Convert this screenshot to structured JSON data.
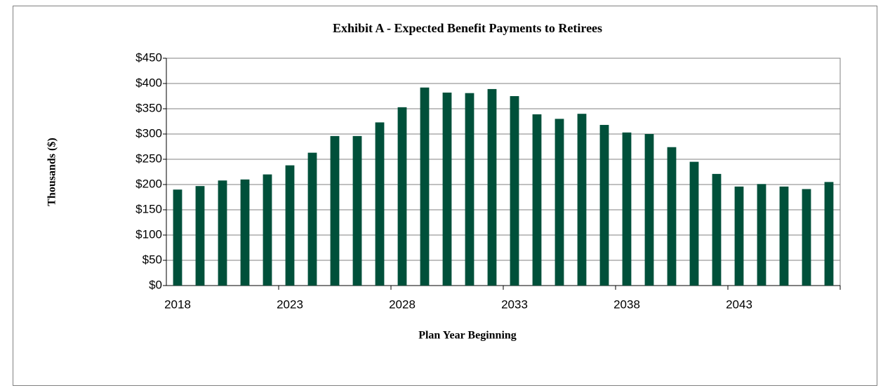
{
  "chart_data": {
    "type": "bar",
    "title": "Exhibit A - Expected Benefit Payments to Retirees",
    "x_label": "Plan Year Beginning",
    "y_label": "Thousands ($)",
    "categories": [
      "2018",
      null,
      null,
      null,
      null,
      "2023",
      null,
      null,
      null,
      null,
      "2028",
      null,
      null,
      null,
      null,
      "2033",
      null,
      null,
      null,
      null,
      "2038",
      null,
      null,
      null,
      null,
      "2043",
      null,
      null,
      null,
      null
    ],
    "values": [
      190,
      197,
      208,
      210,
      220,
      238,
      263,
      296,
      296,
      323,
      353,
      392,
      382,
      381,
      389,
      375,
      339,
      330,
      340,
      318,
      303,
      300,
      274,
      245,
      221,
      196,
      201,
      196,
      191,
      205
    ],
    "color": "#00503a",
    "ylim": [
      0,
      450
    ],
    "yticks": [
      {
        "value": 0,
        "label": "$0"
      },
      {
        "value": 50,
        "label": "$50"
      },
      {
        "value": 100,
        "label": "$100"
      },
      {
        "value": 150,
        "label": "$150"
      },
      {
        "value": 200,
        "label": "$200"
      },
      {
        "value": 250,
        "label": "$250"
      },
      {
        "value": 300,
        "label": "$300"
      },
      {
        "value": 350,
        "label": "$350"
      },
      {
        "value": 400,
        "label": "$400"
      },
      {
        "value": 450,
        "label": "$450"
      }
    ],
    "grid": true
  }
}
